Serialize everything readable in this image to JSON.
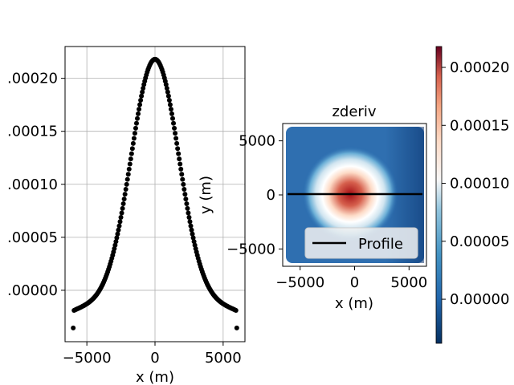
{
  "chart_data": [
    {
      "type": "scatter",
      "title": "",
      "xlabel": "x (m)",
      "ylabel": "",
      "xlim": [
        -6600,
        6600
      ],
      "ylim": [
        -4.85e-05,
        0.00023
      ],
      "grid": true,
      "xticks": [
        -5000,
        0,
        5000
      ],
      "xtick_labels": [
        "−5000",
        "0",
        "5000"
      ],
      "yticks": [
        0.0,
        5e-05,
        0.0001,
        0.00015,
        0.0002
      ],
      "ytick_labels": [
        ".00000",
        ".00005",
        ".00010",
        ".00015",
        ".00020"
      ],
      "series": [
        {
          "color": "#000000",
          "profile_model": "gaussian_plus_background",
          "peak": 0.000218,
          "baseline": -1.5e-05,
          "width": 1750,
          "edge_values": [
            -3.55e-05,
            -3.55e-05
          ],
          "x_range": [
            -6000,
            6000
          ],
          "n_points": 200
        }
      ]
    },
    {
      "type": "heatmap",
      "title": "zderiv",
      "xlabel": "x (m)",
      "ylabel": "y (m)",
      "xlim": [
        -6600,
        6600
      ],
      "ylim": [
        -6600,
        6600
      ],
      "xticks": [
        -5000,
        0,
        5000
      ],
      "xtick_labels": [
        "−5000",
        "0",
        "5000"
      ],
      "yticks": [
        -5000,
        0,
        5000
      ],
      "ytick_labels": [
        "−5000",
        "0",
        "5000"
      ],
      "colormap": "RdBu_r",
      "anomaly_center": [
        -500,
        0
      ],
      "value_range": [
        -3.8e-05,
        0.000218
      ],
      "colorbar": {
        "ticks": [
          0.0,
          5e-05,
          0.0001,
          0.00015,
          0.0002
        ],
        "tick_labels": [
          "0.00000",
          "0.00005",
          "0.00010",
          "0.00015",
          "0.00020"
        ]
      },
      "profile_line": {
        "x": [
          -6000,
          6000
        ],
        "y": [
          0,
          0
        ],
        "color": "#000000"
      },
      "legend": {
        "entries": [
          "Profile"
        ],
        "placement": "lower-right"
      }
    }
  ]
}
